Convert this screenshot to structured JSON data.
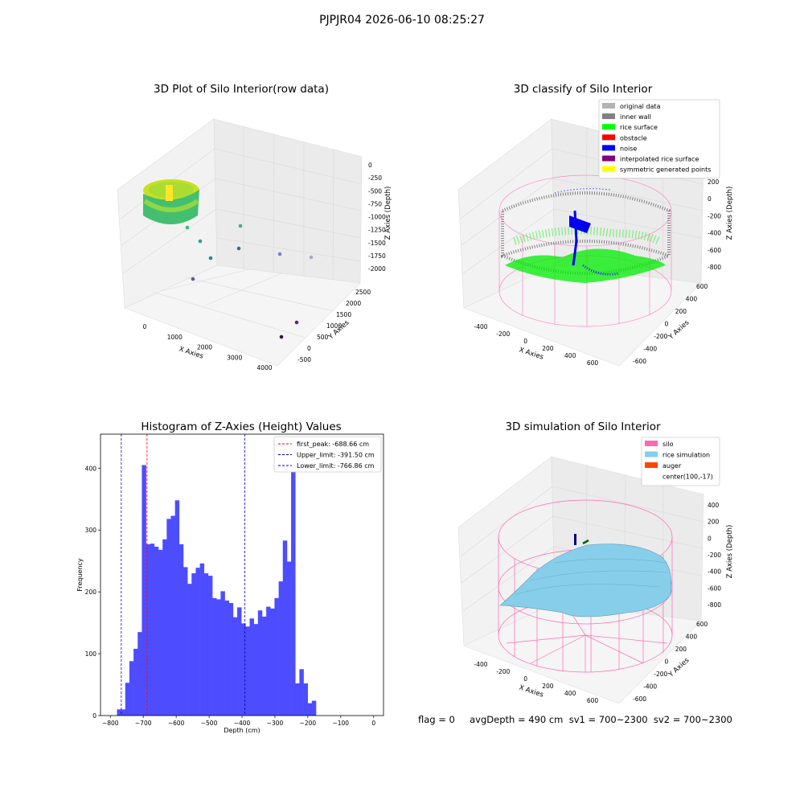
{
  "suptitle": "PJPJR04 2026-06-10 08:25:27",
  "footer": "flag = 0     avgDepth = 490 cm  sv1 = 700~2300  sv2 = 700~2300",
  "chart_data": [
    {
      "type": "scatter",
      "title": "3D Plot of Silo Interior(row data)",
      "xlabel": "X Axies",
      "ylabel": "Y Axies",
      "zlabel": "Z Axies (Depth)",
      "xticks": [
        "0",
        "1000",
        "2000",
        "3000",
        "4000"
      ],
      "yticks": [
        "-500",
        "0",
        "500",
        "1000",
        "1500",
        "2000",
        "2500"
      ],
      "zticks": [
        "0",
        "-250",
        "-500",
        "-750",
        "-1000",
        "-1250",
        "-1500",
        "-1750",
        "-2000"
      ],
      "colormap": "viridis"
    },
    {
      "type": "scatter",
      "title": "3D classify of Silo Interior",
      "xlabel": "X Axies",
      "ylabel": "Y Axies",
      "zlabel": "Z Axies (Depth)",
      "xticks": [
        "-400",
        "-200",
        "0",
        "200",
        "400",
        "600"
      ],
      "yticks": [
        "-600",
        "-400",
        "-200",
        "0",
        "200",
        "400",
        "600"
      ],
      "zticks": [
        "200",
        "0",
        "-200",
        "-400",
        "-600",
        "-800"
      ],
      "legend": [
        {
          "label": "original data",
          "color": "#b3b3b3"
        },
        {
          "label": "inner wall",
          "color": "#808080"
        },
        {
          "label": "rice surface",
          "color": "#00ff00"
        },
        {
          "label": "obstacle",
          "color": "#ff0000"
        },
        {
          "label": "noise",
          "color": "#0000ff"
        },
        {
          "label": "interpolated rice surface",
          "color": "#800080"
        },
        {
          "label": "symmetric generated points",
          "color": "#ffff00"
        }
      ],
      "legend_position": "top-right"
    },
    {
      "type": "bar",
      "title": "Histogram of Z-Axies (Height) Values",
      "xlabel": "Depth (cm)",
      "ylabel": "Frequency",
      "xlim": [
        -830,
        30
      ],
      "ylim": [
        0,
        455
      ],
      "xticks": [
        -800,
        -700,
        -600,
        -500,
        -400,
        -300,
        -200,
        -100,
        0
      ],
      "yticks": [
        0,
        100,
        200,
        300,
        400
      ],
      "bin_start": -780,
      "bin_width": 12.6,
      "values": [
        10,
        10,
        53,
        88,
        108,
        135,
        405,
        277,
        278,
        273,
        268,
        285,
        318,
        323,
        348,
        277,
        240,
        213,
        230,
        239,
        246,
        230,
        226,
        190,
        188,
        201,
        186,
        182,
        159,
        175,
        149,
        144,
        157,
        148,
        170,
        160,
        176,
        173,
        190,
        217,
        283,
        249,
        430,
        52,
        75,
        52,
        20,
        24
      ],
      "bar_color": "#4d4dff",
      "lines": [
        {
          "label": "first_peak: -688.66 cm",
          "x": -688.66,
          "color": "#ff0000"
        },
        {
          "label": "Upper_limit: -391.50 cm",
          "x": -391.5,
          "color": "#0000bb"
        },
        {
          "label": "Lower_limit: -766.86 cm",
          "x": -766.86,
          "color": "#0000bb"
        }
      ],
      "legend_position": "top-right"
    },
    {
      "type": "surface",
      "title": "3D simulation of Silo Interior",
      "xlabel": "X Axies",
      "ylabel": "Y Axies",
      "zlabel": "Z Axies (Depth)",
      "xticks": [
        "-400",
        "-200",
        "0",
        "200",
        "400",
        "600"
      ],
      "yticks": [
        "-600",
        "-400",
        "-200",
        "0",
        "200",
        "400",
        "600"
      ],
      "zticks": [
        "400",
        "200",
        "0",
        "-200",
        "-400",
        "-600",
        "-800"
      ],
      "legend": [
        {
          "label": "silo",
          "color": "#ff69b4"
        },
        {
          "label": "rice simulation",
          "color": "#87ceeb"
        },
        {
          "label": "auger",
          "color": "#ff4500"
        },
        {
          "label": "center(100,-17)",
          "color": ""
        }
      ],
      "legend_position": "top-right"
    }
  ]
}
